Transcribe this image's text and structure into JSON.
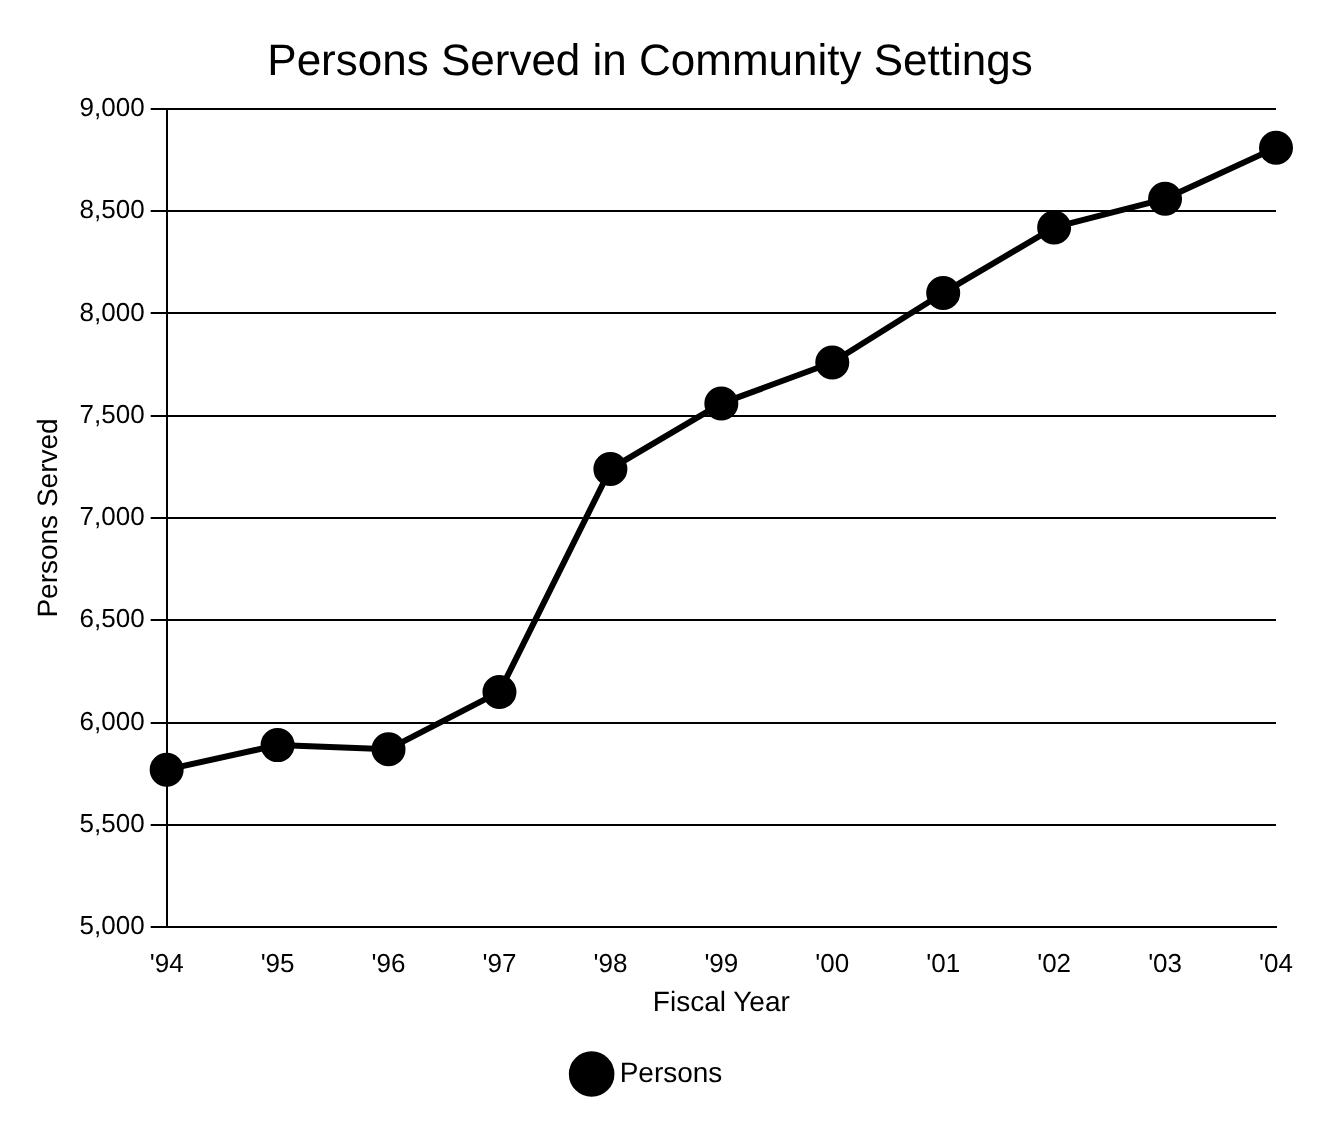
{
  "chart_data": {
    "type": "line",
    "title": "Persons Served in Community Settings",
    "xlabel": "Fiscal Year",
    "ylabel": "Persons Served",
    "categories": [
      "'94",
      "'95",
      "'96",
      "'97",
      "'98",
      "'99",
      "'00",
      "'01",
      "'02",
      "'03",
      "'04"
    ],
    "series": [
      {
        "name": "Persons",
        "color": "#000000",
        "values": [
          5770,
          5890,
          5870,
          6150,
          7240,
          7560,
          7760,
          8100,
          8420,
          8560,
          8810
        ]
      }
    ],
    "ylim": [
      5000,
      9000
    ],
    "yticks": [
      {
        "value": 5000,
        "label": "5,000"
      },
      {
        "value": 5500,
        "label": "5,500"
      },
      {
        "value": 6000,
        "label": "6,000"
      },
      {
        "value": 6500,
        "label": "6,500"
      },
      {
        "value": 7000,
        "label": "7,000"
      },
      {
        "value": 7500,
        "label": "7,500"
      },
      {
        "value": 8000,
        "label": "8,000"
      },
      {
        "value": 8500,
        "label": "8,500"
      },
      {
        "value": 9000,
        "label": "9,000"
      }
    ],
    "grid": "y",
    "legend": "bottom",
    "marker": "circle",
    "line_style": "solid"
  }
}
